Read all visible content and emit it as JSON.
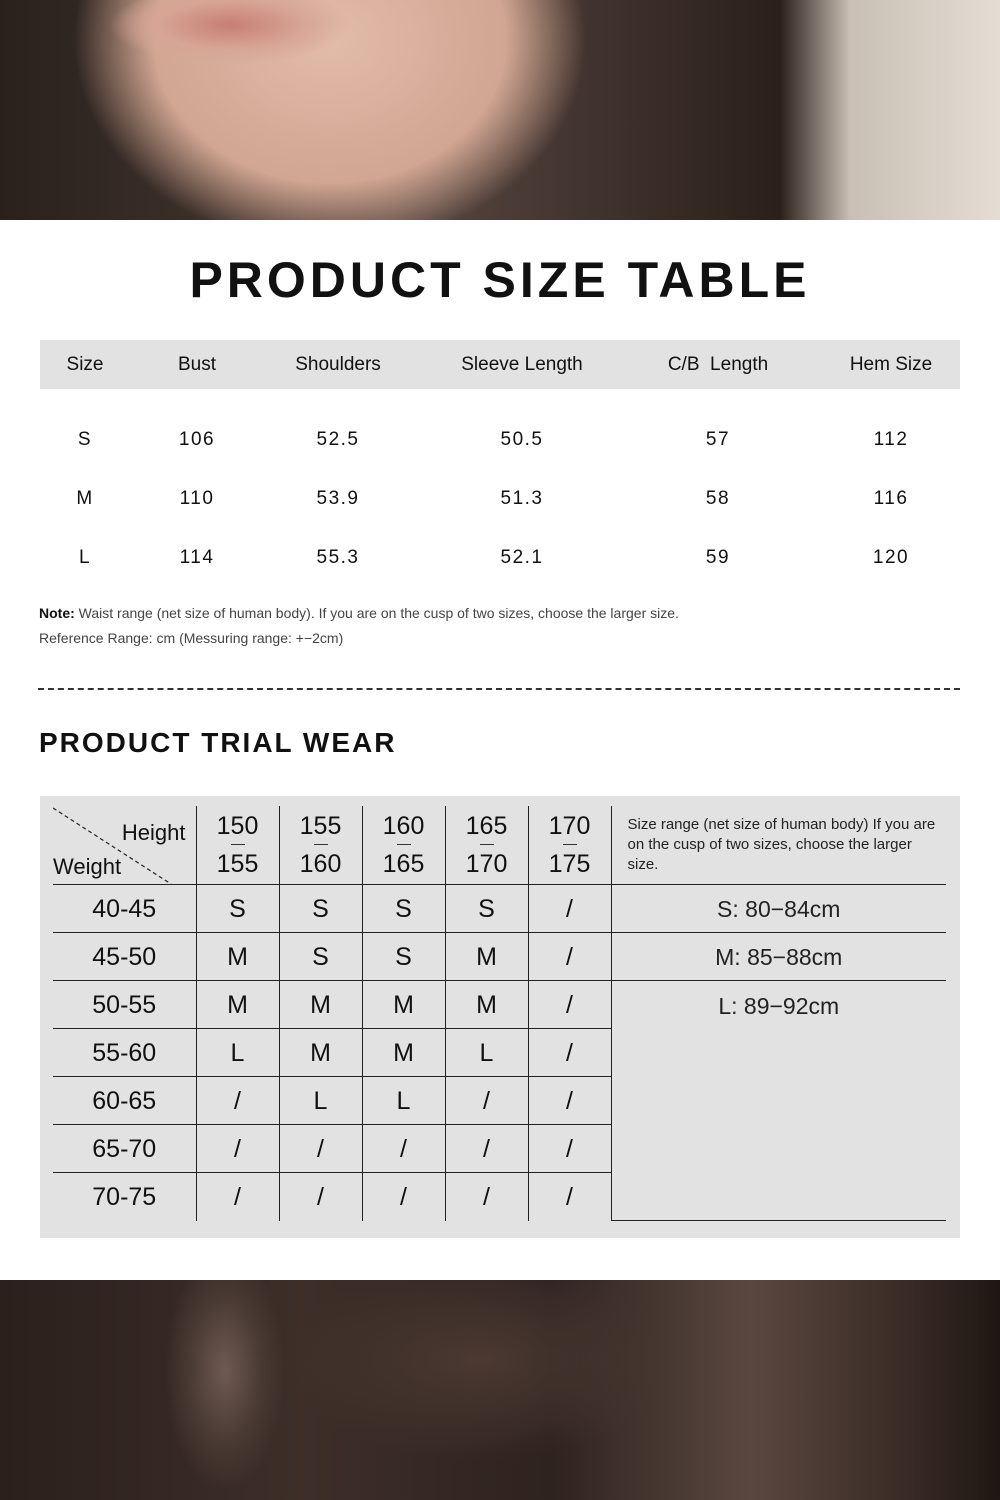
{
  "size_table": {
    "title": "PRODUCT SIZE TABLE",
    "headers": [
      "Size",
      "Bust",
      "Shoulders",
      "Sleeve Length",
      "C/B  Length",
      "Hem Size"
    ],
    "rows": [
      [
        "S",
        "106",
        "52.5",
        "50.5",
        "57",
        "112"
      ],
      [
        "M",
        "110",
        "53.9",
        "51.3",
        "58",
        "116"
      ],
      [
        "L",
        "114",
        "55.3",
        "52.1",
        "59",
        "120"
      ]
    ],
    "note_label": "Note:",
    "note_text": " Waist range (net size of human body). If you are on the cusp of two sizes, choose the larger size.",
    "reference": "Reference Range: cm (Messuring range: +−2cm)"
  },
  "trial_wear": {
    "title": "PRODUCT TRIAL WEAR",
    "height_label": "Height",
    "weight_label": "Weight",
    "heights": [
      [
        "150",
        "155"
      ],
      [
        "155",
        "160"
      ],
      [
        "160",
        "165"
      ],
      [
        "165",
        "170"
      ],
      [
        "170",
        "175"
      ]
    ],
    "range_note": "Size range (net size of human body) If you are on the cusp of two sizes, choose the larger size.",
    "rows": [
      {
        "weight": "40-45",
        "sizes": [
          "S",
          "S",
          "S",
          "S",
          "/"
        ]
      },
      {
        "weight": "45-50",
        "sizes": [
          "M",
          "S",
          "S",
          "M",
          "/"
        ]
      },
      {
        "weight": "50-55",
        "sizes": [
          "M",
          "M",
          "M",
          "M",
          "/"
        ]
      },
      {
        "weight": "55-60",
        "sizes": [
          "L",
          "M",
          "M",
          "L",
          "/"
        ]
      },
      {
        "weight": "60-65",
        "sizes": [
          "/",
          "L",
          "L",
          "/",
          "/"
        ]
      },
      {
        "weight": "65-70",
        "sizes": [
          "/",
          "/",
          "/",
          "/",
          "/"
        ]
      },
      {
        "weight": "70-75",
        "sizes": [
          "/",
          "/",
          "/",
          "/",
          "/"
        ]
      }
    ],
    "ranges": [
      "S: 80−84cm",
      "M: 85−88cm",
      "L: 89−92cm"
    ]
  }
}
